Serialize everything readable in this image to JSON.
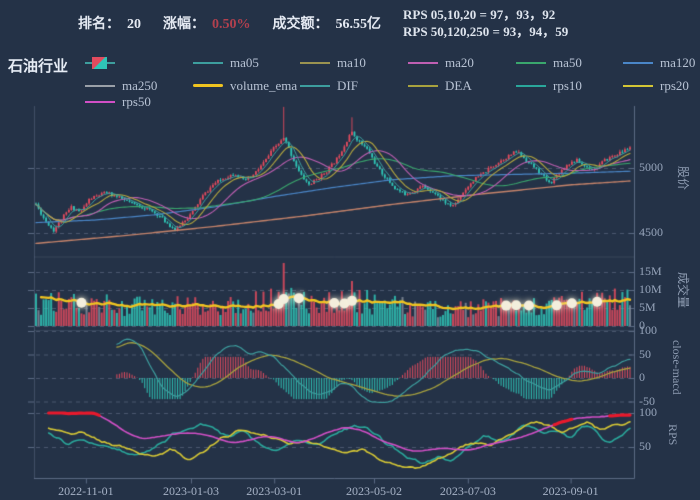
{
  "title": "石油行业",
  "header": {
    "rank_label": "排名：",
    "rank_value": "20",
    "change_label": "涨幅：",
    "change_value": "0.50%",
    "turnover_label": "成交额：",
    "turnover_value": "56.55亿",
    "rps_line1": "RPS 05,10,20 = 97，93，92",
    "rps_line2": "RPS 50,120,250 = 93，94，59"
  },
  "colors": {
    "background": "#243247",
    "border": "#5b6a84",
    "grid": "rgba(158,172,196,0.32)",
    "up": "#e24b5e",
    "down": "#2fc4b6",
    "neutral_bar": "#808b9a",
    "ma05": "#3d9e9e",
    "ma10": "#b5a83e",
    "ma20": "#bf5fb2",
    "ma50": "#3aa76d",
    "ma120": "#4a86c8",
    "ma250": "#c5836a",
    "volume_ema": "#f0c420",
    "dif": "#3d9e9e",
    "dea": "#a8a23e",
    "rps10": "#2aa79b",
    "rps20": "#d4c635",
    "rps50": "#d14fc6",
    "highlight_red": "#e8192c",
    "marker": "#f3eedd"
  },
  "legend": {
    "items": [
      {
        "label": "",
        "swatch": "candle",
        "row": 0,
        "col": 0
      },
      {
        "label": "ma05",
        "color": "#3d9e9e",
        "row": 0,
        "col": 1
      },
      {
        "label": "ma10",
        "color": "#9a9350",
        "row": 0,
        "col": 2
      },
      {
        "label": "ma20",
        "color": "#bf5fb2",
        "row": 0,
        "col": 3
      },
      {
        "label": "ma50",
        "color": "#3aa76d",
        "row": 0,
        "col": 4
      },
      {
        "label": "ma120",
        "color": "#4a86c8",
        "row": 0,
        "col": 5
      },
      {
        "label": "ma250",
        "color": "#9aa0a8",
        "row": 1,
        "col": 0
      },
      {
        "label": "volume_ema",
        "color": "#f0c420",
        "row": 1,
        "col": 1,
        "thick": true
      },
      {
        "label": "DIF",
        "color": "#3d9e9e",
        "row": 1,
        "col": 2
      },
      {
        "label": "DEA",
        "color": "#a8a23e",
        "row": 1,
        "col": 3
      },
      {
        "label": "rps10",
        "color": "#2aa79b",
        "row": 1,
        "col": 4
      },
      {
        "label": "rps20",
        "color": "#d4c635",
        "row": 1,
        "col": 5
      },
      {
        "label": "rps50",
        "color": "#d14fc6",
        "row": 2,
        "col": 0
      }
    ]
  },
  "chart_data": {
    "type": "candlestick",
    "n_bars": 236,
    "seed": 11,
    "panels": [
      {
        "id": "price",
        "ylabel": "股价",
        "yticks": [
          {
            "v": 5000,
            "label": "5000"
          },
          {
            "v": 4500,
            "label": "4500"
          }
        ]
      },
      {
        "id": "volume",
        "ylabel": "成交量",
        "yticks": [
          {
            "v": 15,
            "label": "15M"
          },
          {
            "v": 10,
            "label": "10M"
          },
          {
            "v": 5,
            "label": "5M"
          },
          {
            "v": 0,
            "label": "0"
          }
        ]
      },
      {
        "id": "macd",
        "ylabel": "close-macd",
        "yticks": [
          {
            "v": 100,
            "label": "100"
          },
          {
            "v": 50,
            "label": "50"
          },
          {
            "v": 0,
            "label": "0"
          },
          {
            "v": -50,
            "label": "-50"
          }
        ]
      },
      {
        "id": "rps",
        "ylabel": "RPS",
        "yticks": [
          {
            "v": 100,
            "label": "100"
          },
          {
            "v": 50,
            "label": "50"
          }
        ]
      }
    ],
    "x_axis": {
      "ticks": [
        {
          "label": "2022-11-01",
          "f": 0.084
        },
        {
          "label": "2023-01-03",
          "f": 0.261
        },
        {
          "label": "2023-03-01",
          "f": 0.401
        },
        {
          "label": "2023-05-02",
          "f": 0.569
        },
        {
          "label": "2023-07-03",
          "f": 0.727
        },
        {
          "label": "2023-09-01",
          "f": 0.9
        }
      ]
    },
    "close_keyframes": [
      [
        0.0,
        4720
      ],
      [
        0.015,
        4600
      ],
      [
        0.03,
        4520
      ],
      [
        0.045,
        4620
      ],
      [
        0.06,
        4700
      ],
      [
        0.075,
        4660
      ],
      [
        0.09,
        4760
      ],
      [
        0.105,
        4790
      ],
      [
        0.12,
        4810
      ],
      [
        0.135,
        4780
      ],
      [
        0.15,
        4750
      ],
      [
        0.165,
        4720
      ],
      [
        0.185,
        4690
      ],
      [
        0.205,
        4640
      ],
      [
        0.225,
        4560
      ],
      [
        0.235,
        4520
      ],
      [
        0.25,
        4600
      ],
      [
        0.262,
        4650
      ],
      [
        0.28,
        4780
      ],
      [
        0.3,
        4880
      ],
      [
        0.32,
        4930
      ],
      [
        0.335,
        4960
      ],
      [
        0.35,
        4900
      ],
      [
        0.365,
        4940
      ],
      [
        0.385,
        5050
      ],
      [
        0.4,
        5150
      ],
      [
        0.418,
        5230
      ],
      [
        0.43,
        5100
      ],
      [
        0.445,
        4950
      ],
      [
        0.46,
        4870
      ],
      [
        0.475,
        4920
      ],
      [
        0.49,
        4980
      ],
      [
        0.505,
        5060
      ],
      [
        0.52,
        5180
      ],
      [
        0.53,
        5280
      ],
      [
        0.545,
        5200
      ],
      [
        0.56,
        5130
      ],
      [
        0.575,
        5000
      ],
      [
        0.59,
        4920
      ],
      [
        0.605,
        4840
      ],
      [
        0.62,
        4800
      ],
      [
        0.635,
        4820
      ],
      [
        0.65,
        4860
      ],
      [
        0.665,
        4830
      ],
      [
        0.68,
        4770
      ],
      [
        0.695,
        4710
      ],
      [
        0.705,
        4720
      ],
      [
        0.72,
        4820
      ],
      [
        0.735,
        4900
      ],
      [
        0.75,
        4950
      ],
      [
        0.765,
        5000
      ],
      [
        0.78,
        5050
      ],
      [
        0.795,
        5090
      ],
      [
        0.81,
        5130
      ],
      [
        0.825,
        5060
      ],
      [
        0.84,
        5000
      ],
      [
        0.855,
        4930
      ],
      [
        0.865,
        4880
      ],
      [
        0.88,
        4960
      ],
      [
        0.895,
        5030
      ],
      [
        0.91,
        5060
      ],
      [
        0.925,
        5010
      ],
      [
        0.94,
        4990
      ],
      [
        0.955,
        5050
      ],
      [
        0.97,
        5090
      ],
      [
        0.985,
        5120
      ],
      [
        1.0,
        5160
      ]
    ],
    "wick_spikes": [
      [
        0.417,
        5470
      ],
      [
        0.53,
        5390
      ]
    ],
    "ma120_keyframes": [
      [
        0,
        4580
      ],
      [
        0.1,
        4600
      ],
      [
        0.2,
        4640
      ],
      [
        0.3,
        4700
      ],
      [
        0.4,
        4780
      ],
      [
        0.5,
        4850
      ],
      [
        0.6,
        4910
      ],
      [
        0.7,
        4940
      ],
      [
        0.8,
        4950
      ],
      [
        0.9,
        4960
      ],
      [
        1,
        4975
      ]
    ],
    "ma250_keyframes": [
      [
        0,
        4420
      ],
      [
        0.15,
        4480
      ],
      [
        0.3,
        4550
      ],
      [
        0.45,
        4630
      ],
      [
        0.6,
        4720
      ],
      [
        0.75,
        4800
      ],
      [
        0.9,
        4870
      ],
      [
        1,
        4900
      ]
    ],
    "volume_keyframes": [
      [
        0,
        6.2
      ],
      [
        0.1,
        5.8
      ],
      [
        0.2,
        5.2
      ],
      [
        0.26,
        5.5
      ],
      [
        0.3,
        6.0
      ],
      [
        0.35,
        6.2
      ],
      [
        0.42,
        7.0
      ],
      [
        0.5,
        6.5
      ],
      [
        0.55,
        6.8
      ],
      [
        0.6,
        5.5
      ],
      [
        0.65,
        4.8
      ],
      [
        0.7,
        4.5
      ],
      [
        0.75,
        4.8
      ],
      [
        0.8,
        5.2
      ],
      [
        0.85,
        5.0
      ],
      [
        0.9,
        6.0
      ],
      [
        0.95,
        6.8
      ],
      [
        1,
        7.2
      ]
    ],
    "volume_spikes": [
      [
        0.417,
        17.5
      ],
      [
        0.53,
        12.5
      ],
      [
        0.545,
        10.0
      ],
      [
        0.06,
        8.0
      ],
      [
        0.92,
        9.5
      ],
      [
        0.965,
        8.5
      ]
    ],
    "ema_markers": [
      0.078,
      0.407,
      0.417,
      0.444,
      0.5,
      0.518,
      0.532,
      0.79,
      0.81,
      0.83,
      0.875,
      0.9,
      0.944
    ],
    "dif_keyframes": [
      [
        0.135,
        72
      ],
      [
        0.155,
        85
      ],
      [
        0.175,
        70
      ],
      [
        0.195,
        20
      ],
      [
        0.215,
        -25
      ],
      [
        0.235,
        -40
      ],
      [
        0.255,
        -30
      ],
      [
        0.275,
        5
      ],
      [
        0.3,
        45
      ],
      [
        0.32,
        65
      ],
      [
        0.34,
        70
      ],
      [
        0.36,
        50
      ],
      [
        0.38,
        55
      ],
      [
        0.4,
        45
      ],
      [
        0.42,
        20
      ],
      [
        0.44,
        -5
      ],
      [
        0.46,
        -30
      ],
      [
        0.48,
        -38
      ],
      [
        0.5,
        -25
      ],
      [
        0.515,
        -8
      ],
      [
        0.53,
        -15
      ],
      [
        0.545,
        -35
      ],
      [
        0.565,
        -52
      ],
      [
        0.585,
        -55
      ],
      [
        0.605,
        -45
      ],
      [
        0.625,
        -25
      ],
      [
        0.645,
        -5
      ],
      [
        0.665,
        20
      ],
      [
        0.685,
        45
      ],
      [
        0.705,
        58
      ],
      [
        0.725,
        62
      ],
      [
        0.745,
        55
      ],
      [
        0.765,
        42
      ],
      [
        0.785,
        28
      ],
      [
        0.805,
        12
      ],
      [
        0.825,
        -5
      ],
      [
        0.845,
        -18
      ],
      [
        0.865,
        -25
      ],
      [
        0.885,
        -12
      ],
      [
        0.905,
        8
      ],
      [
        0.925,
        15
      ],
      [
        0.945,
        10
      ],
      [
        0.965,
        22
      ],
      [
        0.985,
        32
      ],
      [
        1.0,
        40
      ]
    ],
    "dea_keyframes": [
      [
        0.135,
        65
      ],
      [
        0.16,
        78
      ],
      [
        0.19,
        62
      ],
      [
        0.22,
        25
      ],
      [
        0.25,
        -10
      ],
      [
        0.28,
        -22
      ],
      [
        0.31,
        -8
      ],
      [
        0.34,
        22
      ],
      [
        0.37,
        42
      ],
      [
        0.4,
        50
      ],
      [
        0.43,
        40
      ],
      [
        0.46,
        22
      ],
      [
        0.49,
        2
      ],
      [
        0.52,
        -10
      ],
      [
        0.55,
        -20
      ],
      [
        0.58,
        -32
      ],
      [
        0.61,
        -40
      ],
      [
        0.64,
        -35
      ],
      [
        0.67,
        -20
      ],
      [
        0.7,
        2
      ],
      [
        0.73,
        25
      ],
      [
        0.76,
        40
      ],
      [
        0.79,
        42
      ],
      [
        0.82,
        32
      ],
      [
        0.85,
        18
      ],
      [
        0.88,
        2
      ],
      [
        0.91,
        -8
      ],
      [
        0.94,
        -2
      ],
      [
        0.97,
        12
      ],
      [
        1.0,
        22
      ]
    ],
    "rps10_keyframes": [
      [
        0.022,
        72
      ],
      [
        0.05,
        55
      ],
      [
        0.08,
        60
      ],
      [
        0.11,
        52
      ],
      [
        0.14,
        45
      ],
      [
        0.17,
        35
      ],
      [
        0.2,
        50
      ],
      [
        0.23,
        68
      ],
      [
        0.26,
        78
      ],
      [
        0.29,
        84
      ],
      [
        0.32,
        66
      ],
      [
        0.35,
        72
      ],
      [
        0.38,
        52
      ],
      [
        0.41,
        45
      ],
      [
        0.44,
        60
      ],
      [
        0.47,
        52
      ],
      [
        0.5,
        68
      ],
      [
        0.53,
        80
      ],
      [
        0.56,
        78
      ],
      [
        0.59,
        55
      ],
      [
        0.62,
        38
      ],
      [
        0.65,
        25
      ],
      [
        0.68,
        35
      ],
      [
        0.7,
        28
      ],
      [
        0.73,
        52
      ],
      [
        0.755,
        68
      ],
      [
        0.78,
        58
      ],
      [
        0.8,
        65
      ],
      [
        0.82,
        83
      ],
      [
        0.84,
        78
      ],
      [
        0.86,
        70
      ],
      [
        0.88,
        76
      ],
      [
        0.9,
        62
      ],
      [
        0.92,
        82
      ],
      [
        0.94,
        76
      ],
      [
        0.96,
        55
      ],
      [
        0.98,
        62
      ],
      [
        1.0,
        80
      ]
    ],
    "rps20_keyframes": [
      [
        0.022,
        80
      ],
      [
        0.05,
        68
      ],
      [
        0.08,
        70
      ],
      [
        0.11,
        58
      ],
      [
        0.14,
        52
      ],
      [
        0.17,
        42
      ],
      [
        0.2,
        36
      ],
      [
        0.23,
        48
      ],
      [
        0.26,
        30
      ],
      [
        0.285,
        42
      ],
      [
        0.31,
        62
      ],
      [
        0.34,
        75
      ],
      [
        0.37,
        70
      ],
      [
        0.4,
        62
      ],
      [
        0.43,
        55
      ],
      [
        0.46,
        58
      ],
      [
        0.49,
        52
      ],
      [
        0.52,
        42
      ],
      [
        0.55,
        48
      ],
      [
        0.58,
        32
      ],
      [
        0.61,
        22
      ],
      [
        0.64,
        18
      ],
      [
        0.67,
        28
      ],
      [
        0.7,
        42
      ],
      [
        0.72,
        52
      ],
      [
        0.74,
        58
      ],
      [
        0.76,
        52
      ],
      [
        0.78,
        62
      ],
      [
        0.8,
        68
      ],
      [
        0.83,
        84
      ],
      [
        0.85,
        87
      ],
      [
        0.87,
        78
      ],
      [
        0.89,
        72
      ],
      [
        0.91,
        80
      ],
      [
        0.93,
        86
      ],
      [
        0.95,
        75
      ],
      [
        0.97,
        80
      ],
      [
        1.0,
        88
      ]
    ],
    "rps50_keyframes": [
      [
        0.022,
        100
      ],
      [
        0.1,
        100
      ],
      [
        0.125,
        88
      ],
      [
        0.15,
        72
      ],
      [
        0.18,
        62
      ],
      [
        0.21,
        66
      ],
      [
        0.24,
        70
      ],
      [
        0.27,
        71
      ],
      [
        0.3,
        64
      ],
      [
        0.33,
        56
      ],
      [
        0.36,
        60
      ],
      [
        0.39,
        67
      ],
      [
        0.42,
        61
      ],
      [
        0.44,
        55
      ],
      [
        0.46,
        60
      ],
      [
        0.49,
        71
      ],
      [
        0.52,
        79
      ],
      [
        0.55,
        74
      ],
      [
        0.58,
        60
      ],
      [
        0.61,
        50
      ],
      [
        0.64,
        43
      ],
      [
        0.66,
        46
      ],
      [
        0.69,
        48
      ],
      [
        0.72,
        45
      ],
      [
        0.74,
        48
      ],
      [
        0.77,
        55
      ],
      [
        0.8,
        61
      ],
      [
        0.83,
        68
      ],
      [
        0.86,
        78
      ],
      [
        0.88,
        86
      ],
      [
        0.9,
        90
      ],
      [
        0.92,
        93
      ],
      [
        0.94,
        94
      ],
      [
        0.96,
        95
      ],
      [
        0.98,
        96
      ],
      [
        1.0,
        97
      ]
    ],
    "rps50_red_segments": [
      [
        0.022,
        0.105
      ],
      [
        0.872,
        0.902
      ],
      [
        0.968,
        1.0
      ]
    ]
  }
}
